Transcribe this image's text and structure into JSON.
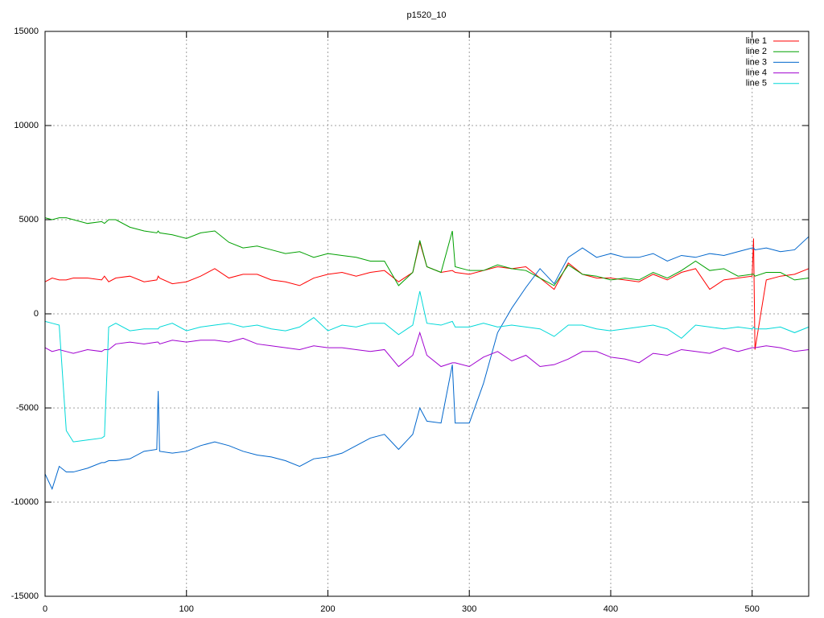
{
  "chart_data": {
    "type": "line",
    "title": "p1520_10",
    "x": [
      0,
      5,
      10,
      15,
      20,
      30,
      40,
      42,
      45,
      50,
      60,
      70,
      79,
      80,
      81,
      90,
      100,
      110,
      120,
      130,
      140,
      150,
      160,
      170,
      180,
      190,
      200,
      210,
      220,
      230,
      240,
      250,
      260,
      265,
      270,
      280,
      288,
      290,
      300,
      310,
      320,
      330,
      340,
      350,
      360,
      370,
      380,
      390,
      400,
      410,
      420,
      430,
      440,
      450,
      460,
      470,
      480,
      490,
      500,
      501,
      502,
      510,
      520,
      530,
      540
    ],
    "series": [
      {
        "name": "line 1",
        "color": "#ff0000",
        "values": [
          1700,
          1900,
          1800,
          1800,
          1900,
          1900,
          1800,
          2000,
          1700,
          1900,
          2000,
          1700,
          1800,
          2000,
          1900,
          1600,
          1700,
          2000,
          2400,
          1900,
          2100,
          2100,
          1800,
          1700,
          1500,
          1900,
          2100,
          2200,
          2000,
          2200,
          2300,
          1700,
          2200,
          3800,
          2500,
          2200,
          2300,
          2200,
          2100,
          2300,
          2500,
          2400,
          2500,
          1900,
          1300,
          2700,
          2100,
          1900,
          1900,
          1800,
          1700,
          2100,
          1800,
          2200,
          2400,
          1300,
          1800,
          1900,
          2000,
          4000,
          -1900,
          1800,
          2000,
          2100,
          2400
        ]
      },
      {
        "name": "line 2",
        "color": "#00a000",
        "values": [
          5100,
          5000,
          5100,
          5100,
          5000,
          4800,
          4900,
          4800,
          5000,
          5000,
          4600,
          4400,
          4300,
          4400,
          4300,
          4200,
          4000,
          4300,
          4400,
          3800,
          3500,
          3600,
          3400,
          3200,
          3300,
          3000,
          3200,
          3100,
          3000,
          2800,
          2800,
          1500,
          2200,
          3900,
          2500,
          2200,
          4400,
          2500,
          2300,
          2300,
          2600,
          2400,
          2300,
          1900,
          1500,
          2600,
          2100,
          2000,
          1800,
          1900,
          1800,
          2200,
          1900,
          2300,
          2800,
          2300,
          2400,
          2000,
          2100,
          2100,
          2000,
          2200,
          2200,
          1800,
          1900
        ]
      },
      {
        "name": "line 3",
        "color": "#0066cc",
        "values": [
          -8500,
          -9300,
          -8100,
          -8400,
          -8400,
          -8200,
          -7900,
          -7900,
          -7800,
          -7800,
          -7700,
          -7300,
          -7200,
          -4100,
          -7300,
          -7400,
          -7300,
          -7000,
          -6800,
          -7000,
          -7300,
          -7500,
          -7600,
          -7800,
          -8100,
          -7700,
          -7600,
          -7400,
          -7000,
          -6600,
          -6400,
          -7200,
          -6400,
          -5000,
          -5700,
          -5800,
          -2700,
          -5800,
          -5800,
          -3700,
          -1000,
          300,
          1400,
          2400,
          1600,
          3000,
          3500,
          3000,
          3200,
          3000,
          3000,
          3200,
          2800,
          3100,
          3000,
          3200,
          3100,
          3300,
          3500,
          3500,
          3400,
          3500,
          3300,
          3400,
          4100
        ]
      },
      {
        "name": "line 4",
        "color": "#a000d0",
        "values": [
          -1800,
          -2000,
          -1900,
          -2000,
          -2100,
          -1900,
          -2000,
          -1900,
          -1900,
          -1600,
          -1500,
          -1600,
          -1500,
          -1500,
          -1600,
          -1400,
          -1500,
          -1400,
          -1400,
          -1500,
          -1300,
          -1600,
          -1700,
          -1800,
          -1900,
          -1700,
          -1800,
          -1800,
          -1900,
          -2000,
          -1900,
          -2800,
          -2200,
          -1000,
          -2200,
          -2800,
          -2600,
          -2600,
          -2800,
          -2300,
          -2000,
          -2500,
          -2200,
          -2800,
          -2700,
          -2400,
          -2000,
          -2000,
          -2300,
          -2400,
          -2600,
          -2100,
          -2200,
          -1900,
          -2000,
          -2100,
          -1800,
          -2000,
          -1800,
          -1800,
          -1800,
          -1700,
          -1800,
          -2000,
          -1900
        ]
      },
      {
        "name": "line 5",
        "color": "#00d8d8",
        "values": [
          -400,
          -500,
          -600,
          -6200,
          -6800,
          -6700,
          -6600,
          -6500,
          -700,
          -500,
          -900,
          -800,
          -800,
          -800,
          -700,
          -500,
          -900,
          -700,
          -600,
          -500,
          -700,
          -600,
          -800,
          -900,
          -700,
          -200,
          -900,
          -600,
          -700,
          -500,
          -500,
          -1100,
          -600,
          1200,
          -500,
          -600,
          -400,
          -700,
          -700,
          -500,
          -700,
          -600,
          -700,
          -800,
          -1200,
          -600,
          -600,
          -800,
          -900,
          -800,
          -700,
          -600,
          -800,
          -1300,
          -600,
          -700,
          -800,
          -700,
          -800,
          -700,
          -800,
          -800,
          -700,
          -1000,
          -700
        ]
      }
    ],
    "xlim": [
      0,
      540
    ],
    "ylim": [
      -15000,
      15000
    ],
    "xticks": [
      0,
      100,
      200,
      300,
      400,
      500
    ],
    "yticks": [
      -15000,
      -10000,
      -5000,
      0,
      5000,
      10000,
      15000
    ],
    "grid": true,
    "legend": "top-right"
  }
}
